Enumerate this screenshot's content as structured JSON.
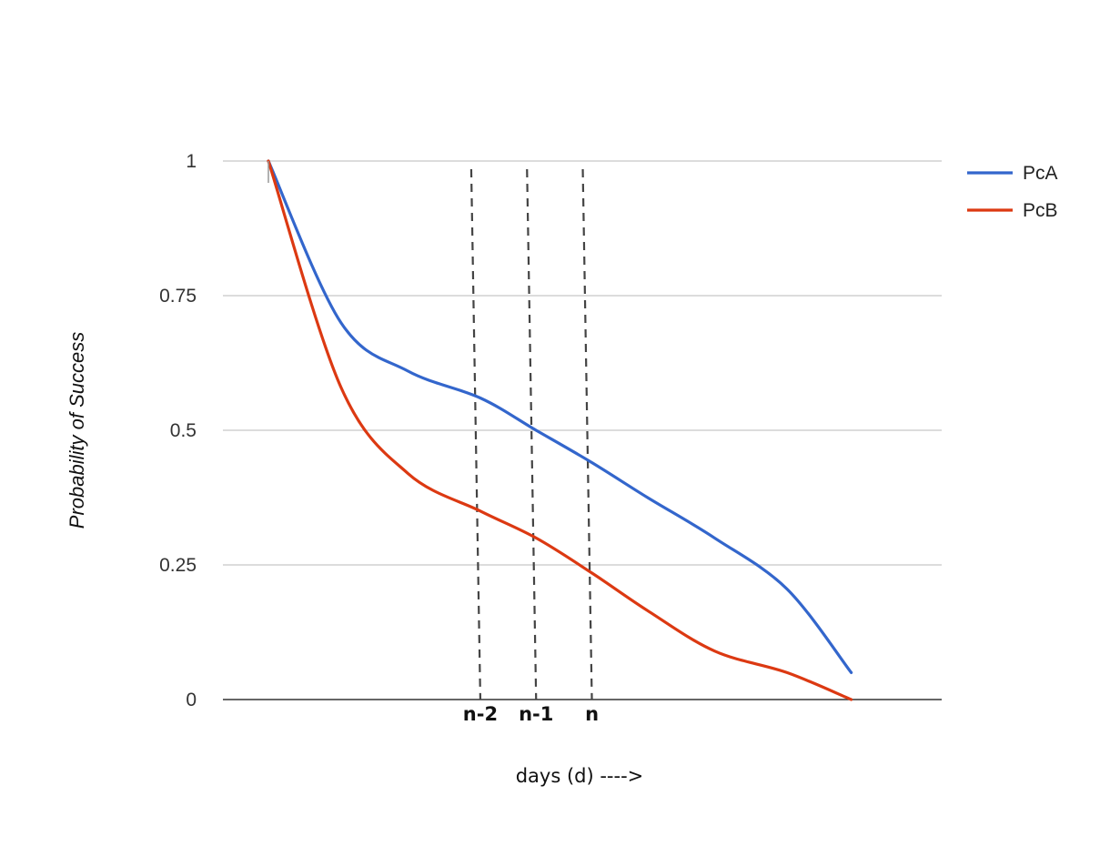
{
  "chart_data": {
    "type": "line",
    "title": "",
    "xlabel": "days (d) ---->",
    "ylabel": "Probability of Success",
    "xlim": [
      0,
      12
    ],
    "ylim": [
      0,
      1
    ],
    "yticks": [
      "0",
      "0.25",
      "0.5",
      "0.75",
      "1"
    ],
    "ytick_values": [
      0,
      0.25,
      0.5,
      0.75,
      1
    ],
    "grid": true,
    "legend_position": "right",
    "series": [
      {
        "name": "PcA",
        "color": "#3366cc",
        "x": [
          0,
          1.3,
          2.5,
          3.8,
          4.8,
          5.8,
          6.8,
          8.0,
          9.3,
          10.45
        ],
        "y": [
          1.0,
          0.7,
          0.61,
          0.56,
          0.5,
          0.44,
          0.375,
          0.3,
          0.205,
          0.05
        ]
      },
      {
        "name": "PcB",
        "color": "#dc3912",
        "x": [
          0,
          1.3,
          2.5,
          3.8,
          4.8,
          5.8,
          6.8,
          8.0,
          9.3,
          10.45
        ],
        "y": [
          1.0,
          0.58,
          0.42,
          0.35,
          0.3,
          0.235,
          0.165,
          0.09,
          0.05,
          0.0
        ]
      }
    ],
    "markers": [
      {
        "label": "n-2",
        "x": 3.8
      },
      {
        "label": "n-1",
        "x": 4.8
      },
      {
        "label": "n",
        "x": 5.8
      }
    ]
  }
}
